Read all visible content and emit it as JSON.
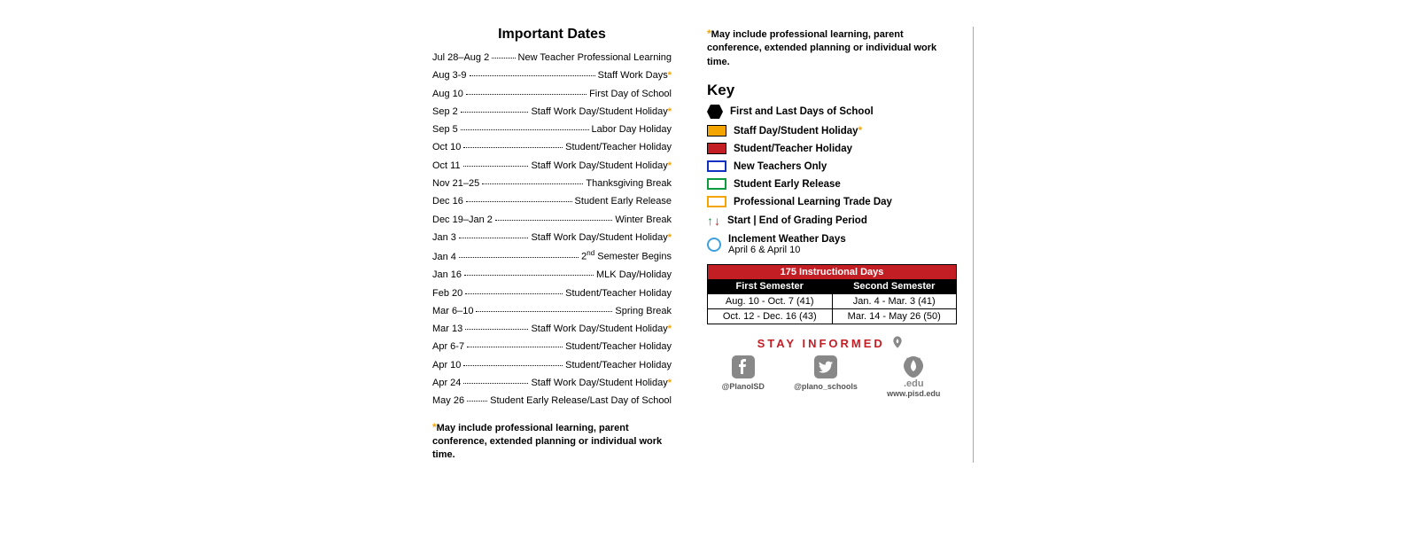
{
  "title": "Important Dates",
  "dates": [
    {
      "d": "Jul 28–Aug 2",
      "desc": "New Teacher Professional Learning",
      "star": false
    },
    {
      "d": "Aug 3-9",
      "desc": "Staff Work Days",
      "star": true
    },
    {
      "d": "Aug 10",
      "desc": "First Day of School",
      "star": false
    },
    {
      "d": "Sep 2",
      "desc": "Staff Work Day/Student Holiday",
      "star": true
    },
    {
      "d": "Sep 5",
      "desc": "Labor Day Holiday",
      "star": false
    },
    {
      "d": "Oct 10",
      "desc": "Student/Teacher Holiday",
      "star": false
    },
    {
      "d": "Oct 11",
      "desc": "Staff Work Day/Student Holiday",
      "star": true
    },
    {
      "d": "Nov 21–25",
      "desc": "Thanksgiving Break",
      "star": false
    },
    {
      "d": "Dec 16",
      "desc": "Student Early Release",
      "star": false
    },
    {
      "d": "Dec 19–Jan 2",
      "desc": "Winter Break",
      "star": false
    },
    {
      "d": "Jan 3",
      "desc": "Staff Work Day/Student Holiday",
      "star": true
    },
    {
      "d": "Jan 4",
      "desc": "2<sup>nd</sup> Semester Begins",
      "star": false,
      "html": true
    },
    {
      "d": "Jan 16",
      "desc": "MLK Day/Holiday",
      "star": false
    },
    {
      "d": "Feb 20",
      "desc": "Student/Teacher Holiday",
      "star": false
    },
    {
      "d": "Mar 6–10",
      "desc": "Spring Break",
      "star": false
    },
    {
      "d": "Mar 13",
      "desc": "Staff Work Day/Student Holiday",
      "star": true
    },
    {
      "d": "Apr 6-7",
      "desc": "Student/Teacher Holiday",
      "star": false
    },
    {
      "d": "Apr 10",
      "desc": "Student/Teacher Holiday",
      "star": false
    },
    {
      "d": "Apr 24",
      "desc": "Staff Work Day/Student Holiday",
      "star": true
    },
    {
      "d": "May 26",
      "desc": "Student Early Release/Last Day of School",
      "star": false
    }
  ],
  "footnote": "May include professional learning, parent conference, extended planning or individual work time.",
  "keyTitle": "Key",
  "keyItems": [
    {
      "type": "hexagon",
      "fill": "#000000",
      "label": "First and Last Days of School"
    },
    {
      "type": "rect",
      "fill": "#f5a500",
      "border": "#000000",
      "label": "Staff Day/Student Holiday",
      "star": true
    },
    {
      "type": "rect",
      "fill": "#c41e25",
      "border": "#000000",
      "label": "Student/Teacher Holiday"
    },
    {
      "type": "rect",
      "fill": "#ffffff",
      "border": "#1030c0",
      "bw": 2,
      "label": "New Teachers Only"
    },
    {
      "type": "rect",
      "fill": "#ffffff",
      "border": "#0d9b3f",
      "bw": 2,
      "label": "Student Early Release"
    },
    {
      "type": "rect",
      "fill": "#ffffff",
      "border": "#f5a500",
      "bw": 2,
      "label": "Professional Learning Trade Day"
    },
    {
      "type": "arrows",
      "label": "Start | End of Grading Period"
    },
    {
      "type": "circle",
      "label": "Inclement Weather Days",
      "sub": "April 6 & April 10"
    }
  ],
  "table": {
    "head": "175 Instructional Days",
    "col1": "First Semester",
    "col2": "Second Semester",
    "rows": [
      [
        "Aug. 10 - Oct. 7 (41)",
        "Jan. 4 - Mar. 3 (41)"
      ],
      [
        "Oct. 12 - Dec. 16 (43)",
        "Mar. 14 - May 26 (50)"
      ]
    ]
  },
  "stay": "STAY INFORMED",
  "socials": [
    {
      "name": "facebook",
      "label": "@PlanoISD"
    },
    {
      "name": "twitter",
      "label": "@plano_schools"
    },
    {
      "name": "web",
      "label": "www.pisd.edu",
      "badge": ".edu"
    }
  ],
  "colors": {
    "accent_red": "#c41e25",
    "accent_yellow": "#f5a500",
    "icon_gray": "#888888"
  }
}
